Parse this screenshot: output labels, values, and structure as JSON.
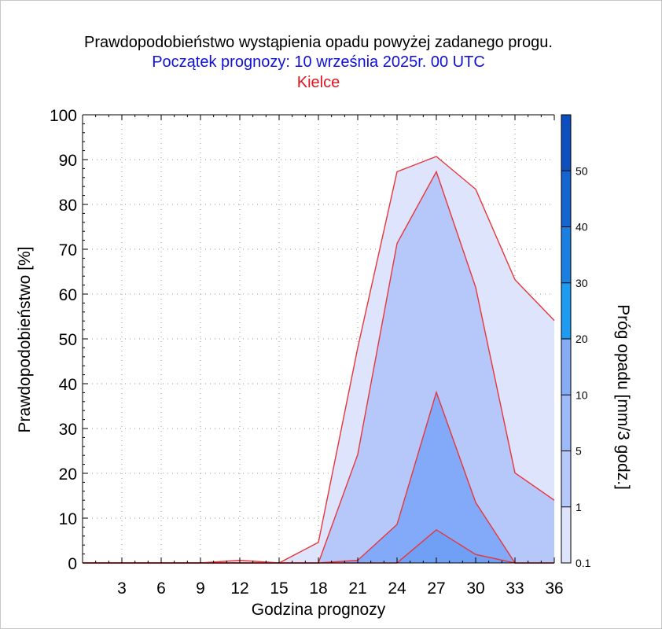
{
  "chart_data": {
    "type": "area",
    "title": "Prawdopodobieństwo wystąpienia opadu powyżej zadanego progu.",
    "subtitle": "Początek prognozy: 10 września 2025r. 00 UTC",
    "location": "Kielce",
    "xlabel": "Godzina prognozy",
    "ylabel": "Prawdopodobieństwo [%]",
    "colorbar_label": "Próg opadu [mm/3 godz.]",
    "xlim": [
      0,
      36
    ],
    "ylim": [
      0,
      100
    ],
    "x_ticks": [
      3,
      6,
      9,
      12,
      15,
      18,
      21,
      24,
      27,
      30,
      33,
      36
    ],
    "y_ticks": [
      0,
      10,
      20,
      30,
      40,
      50,
      60,
      70,
      80,
      90,
      100
    ],
    "grid": true,
    "x": [
      0,
      3,
      6,
      9,
      12,
      15,
      18,
      21,
      24,
      27,
      30,
      33,
      36
    ],
    "series": [
      {
        "name": "0.1",
        "color": "#dde4fb",
        "values": [
          0,
          0,
          0,
          0,
          0.6,
          0,
          4.6,
          48,
          87.3,
          90.7,
          83.4,
          63.2,
          54.1
        ]
      },
      {
        "name": "1",
        "color": "#b6c8fa",
        "values": [
          0,
          0,
          0,
          0,
          0,
          0,
          0,
          24.2,
          71.3,
          87.3,
          61.5,
          20.1,
          14
        ]
      },
      {
        "name": "5",
        "color": "#82aaf8",
        "values": [
          0,
          0,
          0,
          0,
          0,
          0,
          0,
          0.6,
          8.6,
          38.1,
          13.5,
          0,
          0
        ]
      },
      {
        "name": "10",
        "color": "#70a0f6",
        "values": [
          0,
          0,
          0,
          0,
          0,
          0,
          0,
          0,
          0,
          7.4,
          1.9,
          0,
          0
        ]
      }
    ],
    "line_color": "#e8353a",
    "colorbar": {
      "labels": [
        "0.1",
        "1",
        "5",
        "10",
        "20",
        "30",
        "40",
        "50"
      ],
      "segments": [
        {
          "from": 0,
          "to": 1,
          "color": "#dde4fb"
        },
        {
          "from": 1,
          "to": 2,
          "color": "#b6c8fa"
        },
        {
          "from": 2,
          "to": 3,
          "color": "#9dbaf8"
        },
        {
          "from": 3,
          "to": 4,
          "color": "#86acf6"
        },
        {
          "from": 4,
          "to": 5,
          "color": "#1d9bf0"
        },
        {
          "from": 5,
          "to": 6,
          "color": "#1a7fe0"
        },
        {
          "from": 6,
          "to": 7,
          "color": "#1565d0"
        },
        {
          "from": 7,
          "to": 8,
          "color": "#0e4fbf"
        }
      ]
    }
  }
}
